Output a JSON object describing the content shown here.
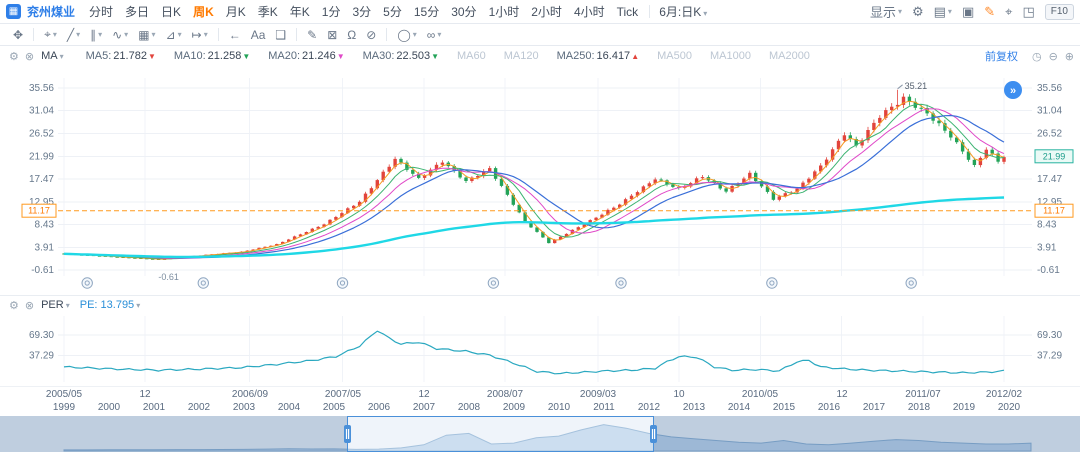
{
  "app": {
    "logo_glyph": "▦",
    "title": "兖州煤业",
    "display_label": "显示",
    "f10_label": "F10"
  },
  "topbar": {
    "timeframes": [
      "分时",
      "多日",
      "日K",
      "周K",
      "月K",
      "季K",
      "年K",
      "1分",
      "3分",
      "5分",
      "15分",
      "30分",
      "1小时",
      "2小时",
      "4小时",
      "Tick"
    ],
    "active_timeframe": "周K",
    "period_dropdown": "6月:日K",
    "right_icons": [
      {
        "name": "settings-icon",
        "glyph": "⚙"
      },
      {
        "name": "layout-icon",
        "glyph": "▤",
        "caret": true
      },
      {
        "name": "screenshot-icon",
        "glyph": "▣"
      },
      {
        "name": "brush-icon",
        "glyph": "✎",
        "color": "#ff8a2a"
      },
      {
        "name": "crosshair-icon",
        "glyph": "⌖"
      },
      {
        "name": "fullscreen-icon",
        "glyph": "◳"
      }
    ]
  },
  "drawbar": {
    "tools": [
      {
        "name": "pan-tool",
        "glyph": "✥"
      },
      {
        "sep": true
      },
      {
        "name": "cursor-tool",
        "glyph": "⌖",
        "caret": true
      },
      {
        "name": "trendline-tool",
        "glyph": "╱",
        "caret": true
      },
      {
        "name": "channel-tool",
        "glyph": "∥",
        "caret": true
      },
      {
        "name": "wave-tool",
        "glyph": "∿",
        "caret": true
      },
      {
        "name": "gann-tool",
        "glyph": "▦",
        "caret": true
      },
      {
        "name": "measure-tool",
        "glyph": "⊿",
        "caret": true
      },
      {
        "name": "extend-tool",
        "glyph": "↦",
        "caret": true
      },
      {
        "sep": true
      },
      {
        "name": "back-icon",
        "glyph": "←"
      },
      {
        "name": "text-tool",
        "glyph": "Aa"
      },
      {
        "name": "comment-tool",
        "glyph": "❑"
      },
      {
        "sep": true
      },
      {
        "name": "pencil-tool",
        "glyph": "✎"
      },
      {
        "name": "eraser-tool",
        "glyph": "⊠"
      },
      {
        "name": "magnet-tool",
        "glyph": "Ω"
      },
      {
        "name": "hide-drawings-tool",
        "glyph": "⊘"
      },
      {
        "sep": true
      },
      {
        "name": "shapes-tool",
        "glyph": "◯",
        "caret": true
      },
      {
        "name": "sync-tool",
        "glyph": "∞",
        "caret": true
      }
    ]
  },
  "main_panel": {
    "settings_icon": "⚙",
    "close_icon": "⊗",
    "indicator_label": "MA",
    "ma_items": [
      {
        "label": "MA5:",
        "value": "21.782",
        "arrow": "▼",
        "arrow_color": "#e2443c"
      },
      {
        "label": "MA10:",
        "value": "21.258",
        "arrow": "▼",
        "arrow_color": "#23a358"
      },
      {
        "label": "MA20:",
        "value": "21.246",
        "arrow": "▼",
        "arrow_color": "#e049c8"
      },
      {
        "label": "MA30:",
        "value": "22.503",
        "arrow": "▼",
        "arrow_color": "#23a358"
      },
      {
        "label": "MA60",
        "disabled": true
      },
      {
        "label": "MA120",
        "disabled": true
      },
      {
        "label": "MA250:",
        "value": "16.417",
        "arrow": "▲",
        "arrow_color": "#e2443c"
      },
      {
        "label": "MA500",
        "disabled": true
      },
      {
        "label": "MA1000",
        "disabled": true
      },
      {
        "label": "MA2000",
        "disabled": true
      }
    ],
    "adjust_label": "前复权",
    "corner_icons": [
      {
        "name": "history-icon",
        "glyph": "◷"
      },
      {
        "name": "collapse-panel-icon",
        "glyph": "⊖"
      },
      {
        "name": "expand-panel-icon",
        "glyph": "⊕"
      }
    ],
    "expand_button_glyph": "»"
  },
  "per_panel": {
    "settings_icon": "⚙",
    "close_icon": "⊗",
    "indicator_label": "PER",
    "pe_label": "PE:",
    "pe_value": "13.795"
  },
  "chart_data": {
    "type": "candlestick",
    "title": "兖州煤业 周K 前复权",
    "y_ticks": [
      35.56,
      31.04,
      26.52,
      21.99,
      17.47,
      12.95,
      8.43,
      3.91,
      -0.61
    ],
    "ref_line": 11.17,
    "last_price": 21.99,
    "total_months": 81,
    "x_axis_labels": [
      {
        "text": "2005/05",
        "month": 0
      },
      {
        "text": "12",
        "month": 7
      },
      {
        "text": "2006/09",
        "month": 16
      },
      {
        "text": "2007/05",
        "month": 24
      },
      {
        "text": "12",
        "month": 31
      },
      {
        "text": "2008/07",
        "month": 38
      },
      {
        "text": "2009/03",
        "month": 46
      },
      {
        "text": "10",
        "month": 53
      },
      {
        "text": "2010/05",
        "month": 60
      },
      {
        "text": "12",
        "month": 67
      },
      {
        "text": "2011/07",
        "month": 74
      },
      {
        "text": "2012/02",
        "month": 81
      }
    ],
    "closes": [
      2.6,
      2.53,
      2.46,
      2.39,
      2.32,
      2.25,
      2.18,
      2.11,
      2.04,
      1.97,
      1.9,
      1.83,
      1.77,
      1.7,
      1.63,
      1.57,
      1.5,
      1.61,
      1.73,
      1.84,
      1.95,
      2.06,
      2.18,
      2.29,
      2.4,
      2.5,
      2.6,
      2.7,
      2.8,
      2.9,
      3.0,
      3.25,
      3.5,
      3.75,
      4.0,
      4.25,
      4.5,
      5.0,
      5.5,
      6.0,
      6.5,
      7.0,
      7.5,
      8.0,
      8.5,
      9.25,
      10.0,
      10.75,
      11.5,
      12.25,
      13.0,
      14.4,
      15.8,
      17.3,
      18.7,
      20.1,
      21.5,
      20.5,
      19.5,
      18.5,
      17.5,
      18.4,
      19.3,
      20.1,
      21.0,
      20.0,
      19.0,
      18.0,
      17.0,
      17.6,
      18.3,
      18.9,
      19.5,
      17.75,
      16.0,
      14.25,
      12.5,
      10.75,
      9.0,
      7.95,
      6.9,
      5.85,
      4.8,
      5.4,
      6.0,
      6.65,
      7.3,
      7.9,
      8.5,
      9.2,
      9.8,
      10.5,
      11.2,
      11.8,
      12.5,
      13.3,
      14.2,
      15.0,
      15.8,
      16.7,
      17.5,
      17.0,
      16.5,
      16.0,
      15.5,
      16.1,
      16.75,
      17.4,
      18.0,
      17.25,
      16.5,
      15.75,
      15.0,
      15.9,
      16.75,
      17.6,
      18.5,
      17.25,
      16.0,
      14.75,
      13.5,
      14.0,
      14.5,
      15.0,
      15.5,
      16.6,
      17.75,
      18.9,
      20.0,
      21.6,
      23.25,
      24.9,
      26.5,
      25.25,
      24.0,
      25.5,
      27.0,
      28.5,
      30.0,
      30.9,
      31.75,
      32.6,
      33.5,
      32.75,
      32.0,
      31.25,
      30.5,
      29.4,
      28.25,
      27.1,
      26.0,
      24.5,
      23.0,
      21.5,
      20.0,
      21.75,
      23.5,
      22.25,
      21.0,
      21.99
    ],
    "peak_annotation": {
      "index": 141,
      "value": 35.21,
      "text": "35.21"
    },
    "low_annotation": {
      "index": 16,
      "text": "-0.61"
    },
    "event_marker_months": [
      2,
      12,
      24,
      37,
      48,
      61,
      73
    ],
    "candle_up_color": "#e2443c",
    "candle_down_color": "#23a358",
    "ma_lines": [
      {
        "name": "MA5",
        "window": 3,
        "color": "#f59a23",
        "width": 1
      },
      {
        "name": "MA10",
        "window": 6,
        "color": "#3cb371",
        "width": 1
      },
      {
        "name": "MA20",
        "window": 10,
        "color": "#e049c8",
        "width": 1
      },
      {
        "name": "MA30",
        "window": 15,
        "color": "#3a6fd8",
        "width": 1.2
      },
      {
        "name": "MA250",
        "window": 400,
        "color": "#1fd8e6",
        "width": 2.4
      }
    ],
    "pe": {
      "label_values": [
        69.3,
        37.29
      ],
      "current": 13.795,
      "line_color": "#2aa8c0",
      "anchors": [
        [
          0,
          20
        ],
        [
          8,
          17
        ],
        [
          16,
          15
        ],
        [
          24,
          17
        ],
        [
          30,
          19
        ],
        [
          36,
          24
        ],
        [
          42,
          30
        ],
        [
          46,
          36
        ],
        [
          50,
          52
        ],
        [
          53,
          76
        ],
        [
          55,
          64
        ],
        [
          57,
          55
        ],
        [
          60,
          58
        ],
        [
          63,
          48
        ],
        [
          68,
          44
        ],
        [
          72,
          38
        ],
        [
          76,
          26
        ],
        [
          80,
          13
        ],
        [
          84,
          10
        ],
        [
          88,
          12
        ],
        [
          92,
          14
        ],
        [
          96,
          15
        ],
        [
          100,
          18
        ],
        [
          102,
          28
        ],
        [
          104,
          36
        ],
        [
          107,
          35
        ],
        [
          110,
          20
        ],
        [
          113,
          15
        ],
        [
          117,
          16
        ],
        [
          121,
          14
        ],
        [
          124,
          28
        ],
        [
          126,
          30
        ],
        [
          128,
          20
        ],
        [
          132,
          17
        ],
        [
          136,
          15
        ],
        [
          140,
          14
        ],
        [
          144,
          13
        ],
        [
          148,
          12
        ],
        [
          152,
          11
        ],
        [
          156,
          12
        ],
        [
          159,
          13.8
        ]
      ]
    },
    "navigator": {
      "years": [
        "1999",
        "2000",
        "2001",
        "2002",
        "2003",
        "2004",
        "2005",
        "2006",
        "2007",
        "2008",
        "2009",
        "2010",
        "2011",
        "2012",
        "2013",
        "2014",
        "2015",
        "2016",
        "2017",
        "2018",
        "2019",
        "2020"
      ],
      "values": [
        1.2,
        1.3,
        1.4,
        1.5,
        1.5,
        1.6,
        1.6,
        1.7,
        1.8,
        2.2,
        2.5,
        2.3,
        2.4,
        1.8,
        2.2,
        3.5,
        7,
        18,
        20,
        8,
        9,
        15,
        17,
        24,
        30,
        26,
        20,
        16,
        14,
        12,
        10,
        9,
        12,
        8,
        7,
        9,
        11,
        13,
        12,
        10,
        9,
        8,
        8,
        9
      ],
      "selection": {
        "start_year": 2005.3,
        "end_year": 2012.1
      }
    }
  }
}
